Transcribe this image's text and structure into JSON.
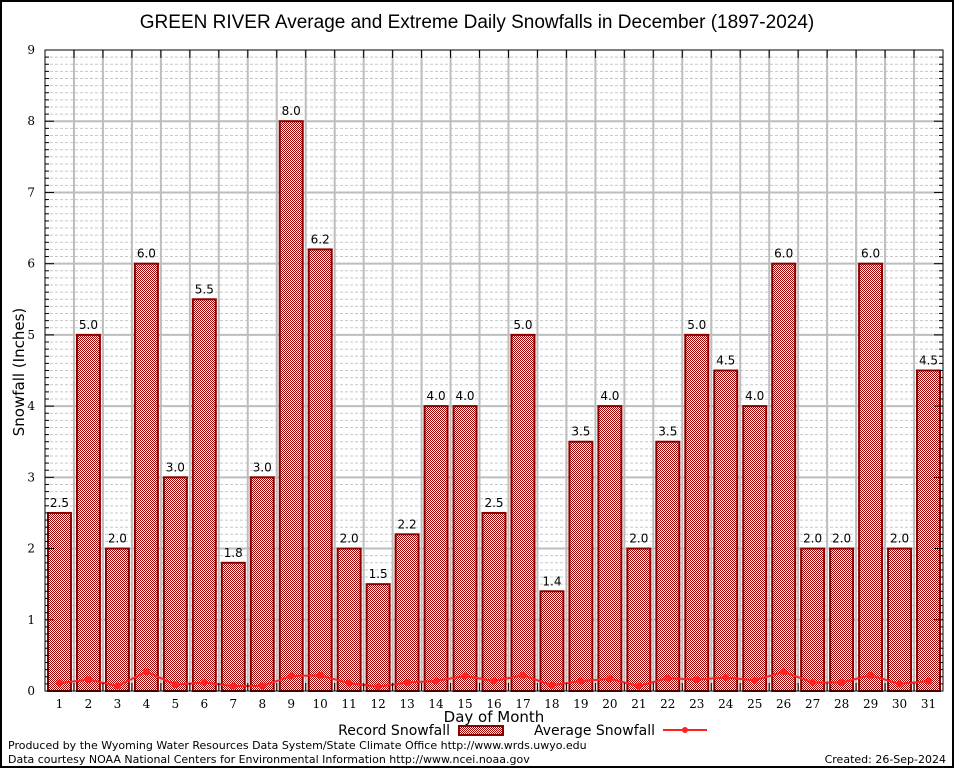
{
  "chart_data": {
    "type": "bar",
    "title": "GREEN RIVER Average and Extreme Daily Snowfalls in December (1897-2024)",
    "xlabel": "Day of Month",
    "ylabel": "Snowfall (Inches)",
    "ylim": [
      0,
      9
    ],
    "yticks": [
      "0",
      "1",
      "2",
      "3",
      "4",
      "5",
      "6",
      "7",
      "8",
      "9"
    ],
    "grid": true,
    "categories": [
      "1",
      "2",
      "3",
      "4",
      "5",
      "6",
      "7",
      "8",
      "9",
      "10",
      "11",
      "12",
      "13",
      "14",
      "15",
      "16",
      "17",
      "18",
      "19",
      "20",
      "21",
      "22",
      "23",
      "24",
      "25",
      "26",
      "27",
      "28",
      "29",
      "30",
      "31"
    ],
    "series": [
      {
        "name": "Record Snowfall",
        "kind": "bar",
        "color": "#a00000",
        "border_color": "#8b0000",
        "values": [
          2.5,
          5.0,
          2.0,
          6.0,
          3.0,
          5.5,
          1.8,
          3.0,
          8.0,
          6.2,
          2.0,
          1.5,
          2.2,
          4.0,
          4.0,
          2.5,
          5.0,
          1.4,
          3.5,
          4.0,
          2.0,
          3.5,
          5.0,
          4.5,
          4.0,
          6.0,
          2.0,
          2.0,
          6.0,
          2.0,
          4.5
        ],
        "labels": [
          "2.5",
          "5.0",
          "2.0",
          "6.0",
          "3.0",
          "5.5",
          "1.8",
          "3.0",
          "8.0",
          "6.2",
          "2.0",
          "1.5",
          "2.2",
          "4.0",
          "4.0",
          "2.5",
          "5.0",
          "1.4",
          "3.5",
          "4.0",
          "2.0",
          "3.5",
          "5.0",
          "4.5",
          "4.0",
          "6.0",
          "2.0",
          "2.0",
          "6.0",
          "2.0",
          "4.5"
        ]
      },
      {
        "name": "Average Snowfall",
        "kind": "line",
        "color": "#ff2020",
        "values": [
          0.11,
          0.16,
          0.07,
          0.27,
          0.09,
          0.12,
          0.07,
          0.07,
          0.21,
          0.22,
          0.11,
          0.06,
          0.12,
          0.14,
          0.21,
          0.14,
          0.22,
          0.08,
          0.14,
          0.17,
          0.07,
          0.18,
          0.16,
          0.19,
          0.15,
          0.27,
          0.12,
          0.12,
          0.22,
          0.1,
          0.14
        ]
      }
    ],
    "legend": {
      "placement": "bottom-center",
      "entries": [
        "Record Snowfall",
        "Average Snowfall"
      ]
    }
  },
  "footer": {
    "line1": "Produced by the Wyoming Water Resources Data System/State Climate Office http://www.wrds.uwyo.edu",
    "line2": "Data courtesy NOAA National Centers for Environmental Information http://www.ncei.noaa.gov",
    "created": "Created:  26-Sep-2024"
  }
}
